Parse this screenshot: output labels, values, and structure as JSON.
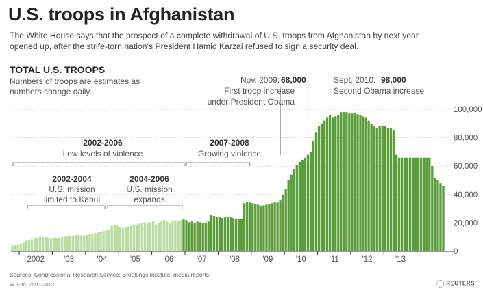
{
  "header": {
    "title": "U.S. troops in Afghanistan",
    "subtitle": "The White House says that the prospect of a complete withdrawal of U.S. troops from Afghanistan by next year opened up, after the strife-torn nation’s President Hamid Karzai refused to sign a security deal."
  },
  "section": {
    "title": "TOTAL U.S. TROOPS",
    "note": "Numbers of troops are estimates as numbers change daily."
  },
  "colors": {
    "light_bar": "#b9dca0",
    "dark_bar": "#5a9d3a",
    "grid": "#bbbbbb",
    "axis": "#333333"
  },
  "chart_data": {
    "type": "bar",
    "x_start": "Oct 2001",
    "x_end": "Nov 2013",
    "interval": "monthly",
    "dark_from_index": 62,
    "ylim": [
      0,
      100000
    ],
    "y_ticks": [
      "100,000",
      "80,000",
      "60,000",
      "40,000",
      "20,000",
      "0"
    ],
    "y_tick_values": [
      100000,
      80000,
      60000,
      40000,
      20000,
      0
    ],
    "x_tick_labels": [
      "2002",
      "'03",
      "'04",
      "'05",
      "'06",
      "'07",
      "'08",
      "'09",
      "'10",
      "'11",
      "'12",
      "'13"
    ],
    "values": [
      4000,
      4500,
      5000,
      5500,
      6500,
      7500,
      8000,
      8500,
      9000,
      9500,
      10000,
      10000,
      10000,
      9800,
      9500,
      9300,
      9500,
      9800,
      10000,
      10300,
      10500,
      11000,
      11000,
      11500,
      11500,
      11300,
      11200,
      11500,
      12000,
      12500,
      13000,
      13500,
      14000,
      14500,
      15000,
      15500,
      18000,
      18500,
      18000,
      17000,
      16500,
      17000,
      17500,
      18000,
      18500,
      19000,
      19500,
      20000,
      20500,
      20000,
      20500,
      21000,
      19000,
      20000,
      21000,
      22000,
      21000,
      19500,
      21500,
      22000,
      21500,
      22000,
      22500,
      22000,
      20500,
      21000,
      20000,
      21000,
      20500,
      20000,
      20000,
      21000,
      25500,
      25000,
      24500,
      24000,
      23500,
      24000,
      24500,
      24000,
      23500,
      23000,
      23000,
      23000,
      34000,
      35000,
      34500,
      34000,
      33500,
      33000,
      32000,
      32500,
      33000,
      33500,
      34000,
      34500,
      34500,
      36000,
      40000,
      44000,
      50000,
      54000,
      58000,
      61000,
      63000,
      64500,
      66000,
      68000,
      70000,
      78000,
      84000,
      88000,
      90000,
      92000,
      94000,
      96000,
      94000,
      95000,
      96000,
      98000,
      98000,
      98000,
      97000,
      97000,
      97500,
      96500,
      96000,
      95000,
      94000,
      92000,
      90000,
      88000,
      87000,
      88000,
      88000,
      88000,
      87000,
      86500,
      85000,
      68000,
      66000,
      66000,
      66000,
      66000,
      66000,
      66000,
      66000,
      66000,
      66000,
      66000,
      66000,
      66000,
      60000,
      52000,
      50000,
      48000,
      46000
    ],
    "annotations": {
      "nov2009": {
        "date": "Nov. 2009:",
        "value": "68,000",
        "line1": "First troop increase",
        "line2": "under President Obama"
      },
      "sept2010": {
        "date": "Sept. 2010:",
        "value": "98,000",
        "line1": "Second Obama increase"
      },
      "range_2002_2006": {
        "label": "2002-2006",
        "text": "Low levels of violence"
      },
      "range_2007_2008": {
        "label": "2007-2008",
        "text": "Growing violence"
      },
      "range_2002_2004": {
        "label": "2002-2004",
        "line1": "U.S. mission",
        "line2": "limited to Kabul"
      },
      "range_2004_2006": {
        "label": "2004-2006",
        "line1": "U.S. mission",
        "line2": "expands"
      }
    }
  },
  "footer": {
    "source": "Sources: Congressional Research Service; Brookings Institute; media reports.",
    "credit": "W. Foo, 26/11/2013",
    "logo": "REUTERS"
  }
}
